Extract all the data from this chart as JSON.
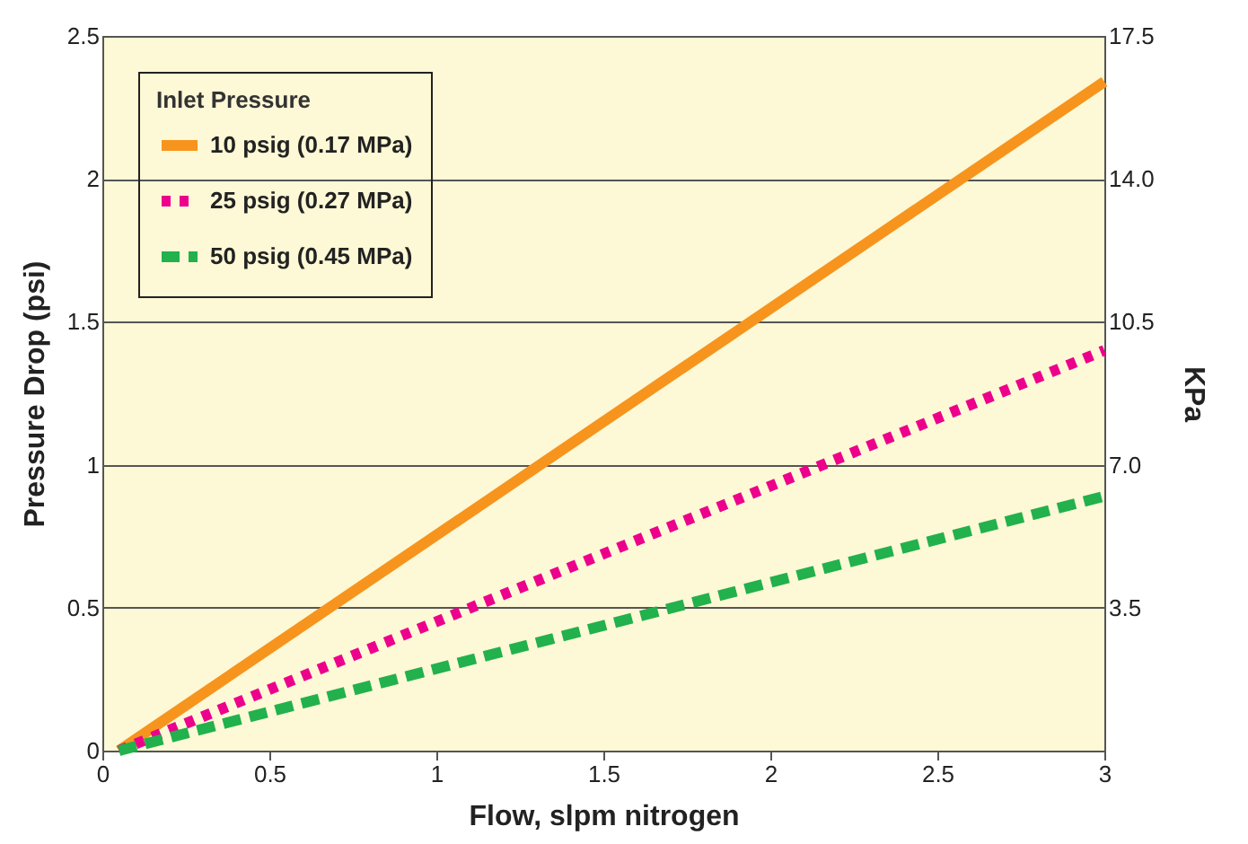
{
  "chart_data": {
    "type": "line",
    "xlabel": "Flow, slpm nitrogen",
    "ylabel": "Pressure Drop (psi)",
    "y2label": "KPa",
    "legend_title": "Inlet Pressure",
    "legend": "top left",
    "grid": "y",
    "marker": "none",
    "xlim": [
      0,
      3
    ],
    "xticks": [
      0,
      0.5,
      1,
      1.5,
      2,
      2.5,
      3
    ],
    "ylim": [
      0,
      2.5
    ],
    "yticks": [
      0,
      0.5,
      1,
      1.5,
      2,
      2.5
    ],
    "y2lim": [
      0,
      17.5
    ],
    "y2ticks": [
      3.5,
      {
        "value": 7,
        "label": "7.0"
      },
      10.5,
      {
        "value": 14,
        "label": "14.0"
      },
      17.5
    ],
    "x": [
      0.05,
      3
    ],
    "series": [
      {
        "name": "10 psig (0.17 MPa)",
        "color": "#f7941d",
        "line_style": "solid",
        "values": [
          0,
          2.34
        ]
      },
      {
        "name": "25 psig (0.27 MPa)",
        "color": "#ec008c",
        "line_style": "dotted",
        "values": [
          0,
          1.4
        ]
      },
      {
        "name": "50 psig (0.45 MPa)",
        "color": "#22b14c",
        "line_style": "dashed",
        "values": [
          0,
          0.89
        ]
      }
    ]
  }
}
